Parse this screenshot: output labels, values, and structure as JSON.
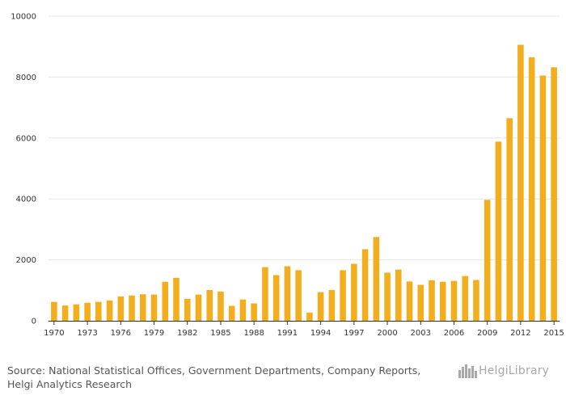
{
  "chart_data": {
    "type": "bar",
    "title": "",
    "xlabel": "",
    "ylabel": "",
    "ylim": [
      0,
      10000
    ],
    "y_ticks": [
      0,
      2000,
      4000,
      6000,
      8000,
      10000
    ],
    "categories": [
      "1970",
      "1971",
      "1972",
      "1973",
      "1974",
      "1975",
      "1976",
      "1977",
      "1978",
      "1979",
      "1980",
      "1981",
      "1982",
      "1983",
      "1984",
      "1985",
      "1986",
      "1987",
      "1988",
      "1989",
      "1990",
      "1991",
      "1992",
      "1993",
      "1994",
      "1995",
      "1996",
      "1997",
      "1998",
      "1999",
      "2000",
      "2001",
      "2002",
      "2003",
      "2004",
      "2005",
      "2006",
      "2007",
      "2008",
      "2009",
      "2010",
      "2011",
      "2012",
      "2013",
      "2014",
      "2015"
    ],
    "x_tick_labels": [
      "1970",
      "1973",
      "1976",
      "1979",
      "1982",
      "1985",
      "1988",
      "1991",
      "1994",
      "1997",
      "2000",
      "2003",
      "2006",
      "2009",
      "2012",
      "2015"
    ],
    "values": [
      620,
      500,
      540,
      590,
      620,
      670,
      800,
      830,
      870,
      860,
      1280,
      1410,
      720,
      860,
      1010,
      960,
      490,
      700,
      570,
      1760,
      1500,
      1790,
      1660,
      270,
      940,
      1010,
      1660,
      1870,
      2350,
      2750,
      1580,
      1680,
      1290,
      1180,
      1330,
      1280,
      1310,
      1470,
      1340,
      3970,
      5880,
      6650,
      9060,
      8650,
      8050,
      8320
    ],
    "bar_color": "#f2ae1c",
    "grid": true
  },
  "footer": {
    "source_line1": "Source: National Statistical Offices, Government Departments, Company Reports,",
    "source_line2": "Helgi Analytics Research",
    "logo_icon": "city-skyline-icon",
    "logo_text": "HelgiLibrary"
  }
}
